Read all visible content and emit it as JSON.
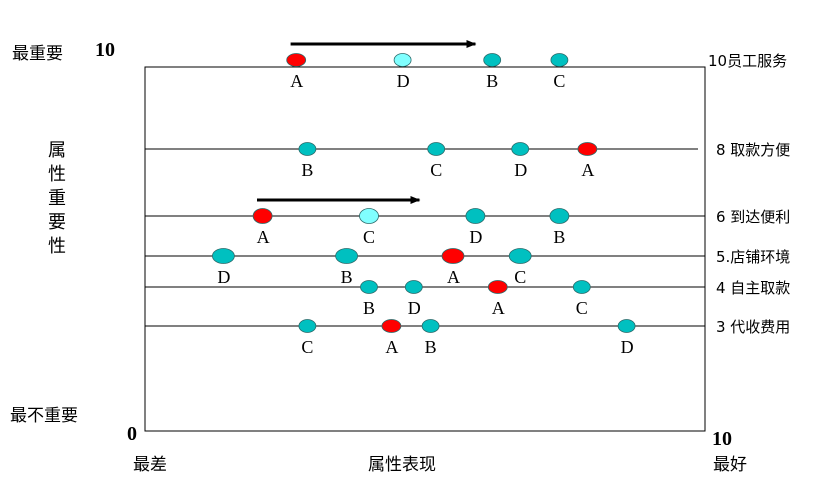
{
  "y_axis": {
    "top_label": "最重要",
    "top_value": "10",
    "bottom_label": "最不重要",
    "bottom_value": "0",
    "title_chars": [
      "属",
      "性",
      "重",
      "要",
      "性"
    ]
  },
  "x_axis": {
    "left_label": "最差",
    "title": "属性表现",
    "right_value": "10",
    "right_label": "最好"
  },
  "colors": {
    "highlight": "#ff0000",
    "normal": "#00c0c0",
    "previous": "#80ffff"
  },
  "rows": [
    {
      "label": "10员工服务",
      "has_line": false,
      "arrow": {
        "from": 2.6,
        "to": 5.9
      },
      "points": [
        {
          "letter": "A",
          "x": 2.7,
          "style": "highlight"
        },
        {
          "letter": "D",
          "x": 4.6,
          "style": "previous"
        },
        {
          "letter": "B",
          "x": 6.2,
          "style": "normal"
        },
        {
          "letter": "C",
          "x": 7.4,
          "style": "normal"
        }
      ]
    },
    {
      "label": "8 取款方便",
      "has_line": true,
      "points": [
        {
          "letter": "B",
          "x": 2.9,
          "style": "normal"
        },
        {
          "letter": "C",
          "x": 5.2,
          "style": "normal"
        },
        {
          "letter": "D",
          "x": 6.7,
          "style": "normal"
        },
        {
          "letter": "A",
          "x": 7.9,
          "style": "highlight"
        }
      ]
    },
    {
      "label": "6 到达便利",
      "has_line": true,
      "arrow": {
        "from": 2.0,
        "to": 4.9
      },
      "points": [
        {
          "letter": "A",
          "x": 2.1,
          "style": "highlight"
        },
        {
          "letter": "C",
          "x": 4.0,
          "style": "previous"
        },
        {
          "letter": "D",
          "x": 5.9,
          "style": "normal"
        },
        {
          "letter": "B",
          "x": 7.4,
          "style": "normal"
        }
      ]
    },
    {
      "label": "5.店铺环境",
      "has_line": true,
      "points": [
        {
          "letter": "D",
          "x": 1.4,
          "style": "normal"
        },
        {
          "letter": "B",
          "x": 3.6,
          "style": "normal"
        },
        {
          "letter": "A",
          "x": 5.5,
          "style": "highlight"
        },
        {
          "letter": "C",
          "x": 6.7,
          "style": "normal"
        }
      ]
    },
    {
      "label": "4 自主取款",
      "has_line": true,
      "points": [
        {
          "letter": "B",
          "x": 4.0,
          "style": "normal"
        },
        {
          "letter": "D",
          "x": 4.8,
          "style": "normal"
        },
        {
          "letter": "A",
          "x": 6.3,
          "style": "highlight"
        },
        {
          "letter": "C",
          "x": 7.8,
          "style": "normal"
        }
      ]
    },
    {
      "label": "3 代收费用",
      "has_line": true,
      "points": [
        {
          "letter": "C",
          "x": 2.9,
          "style": "normal"
        },
        {
          "letter": "A",
          "x": 4.4,
          "style": "highlight"
        },
        {
          "letter": "B",
          "x": 5.1,
          "style": "normal"
        },
        {
          "letter": "D",
          "x": 8.6,
          "style": "normal"
        }
      ]
    }
  ]
}
